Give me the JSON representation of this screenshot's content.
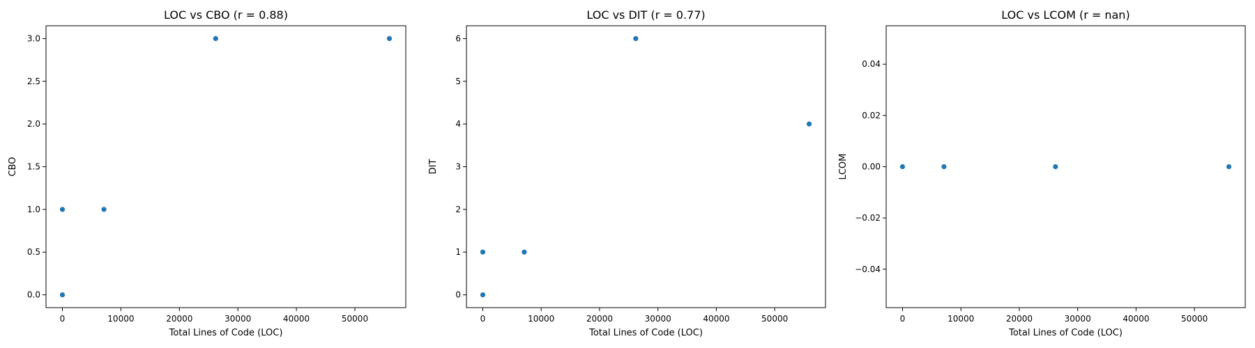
{
  "chart_data": [
    {
      "type": "scatter",
      "title": "LOC vs CBO (r = 0.88)",
      "xlabel": "Total Lines of Code (LOC)",
      "ylabel": "CBO",
      "xlim": [
        -2800,
        58700
      ],
      "ylim": [
        -0.15,
        3.15
      ],
      "xticks": [
        0,
        10000,
        20000,
        30000,
        40000,
        50000
      ],
      "xtick_labels": [
        "0",
        "10000",
        "20000",
        "30000",
        "40000",
        "50000"
      ],
      "yticks": [
        0,
        0.5,
        1,
        1.5,
        2,
        2.5,
        3
      ],
      "ytick_labels": [
        "0.0",
        "0.5",
        "1.0",
        "1.5",
        "2.0",
        "2.5",
        "3.0"
      ],
      "grid": false,
      "marker_color": "#1f77b4",
      "points": [
        {
          "x": 0,
          "y": 0
        },
        {
          "x": 0,
          "y": 1
        },
        {
          "x": 7100,
          "y": 1
        },
        {
          "x": 26200,
          "y": 3
        },
        {
          "x": 55900,
          "y": 3
        }
      ]
    },
    {
      "type": "scatter",
      "title": "LOC vs DIT (r = 0.77)",
      "xlabel": "Total Lines of Code (LOC)",
      "ylabel": "DIT",
      "xlim": [
        -2800,
        58700
      ],
      "ylim": [
        -0.3,
        6.3
      ],
      "xticks": [
        0,
        10000,
        20000,
        30000,
        40000,
        50000
      ],
      "xtick_labels": [
        "0",
        "10000",
        "20000",
        "30000",
        "40000",
        "50000"
      ],
      "yticks": [
        0,
        1,
        2,
        3,
        4,
        5,
        6
      ],
      "ytick_labels": [
        "0",
        "1",
        "2",
        "3",
        "4",
        "5",
        "6"
      ],
      "grid": false,
      "marker_color": "#1f77b4",
      "points": [
        {
          "x": 0,
          "y": 0
        },
        {
          "x": 0,
          "y": 1
        },
        {
          "x": 7100,
          "y": 1
        },
        {
          "x": 26200,
          "y": 6
        },
        {
          "x": 55900,
          "y": 4
        }
      ]
    },
    {
      "type": "scatter",
      "title": "LOC vs LCOM (r = nan)",
      "xlabel": "Total Lines of Code (LOC)",
      "ylabel": "LCOM",
      "xlim": [
        -2800,
        58700
      ],
      "ylim": [
        -0.055,
        0.055
      ],
      "xticks": [
        0,
        10000,
        20000,
        30000,
        40000,
        50000
      ],
      "xtick_labels": [
        "0",
        "10000",
        "20000",
        "30000",
        "40000",
        "50000"
      ],
      "yticks": [
        -0.04,
        -0.02,
        0,
        0.02,
        0.04
      ],
      "ytick_labels": [
        "−0.04",
        "−0.02",
        "0.00",
        "0.02",
        "0.04"
      ],
      "grid": false,
      "marker_color": "#1f77b4",
      "points": [
        {
          "x": 0,
          "y": 0
        },
        {
          "x": 7100,
          "y": 0
        },
        {
          "x": 26200,
          "y": 0
        },
        {
          "x": 55900,
          "y": 0
        }
      ]
    }
  ]
}
